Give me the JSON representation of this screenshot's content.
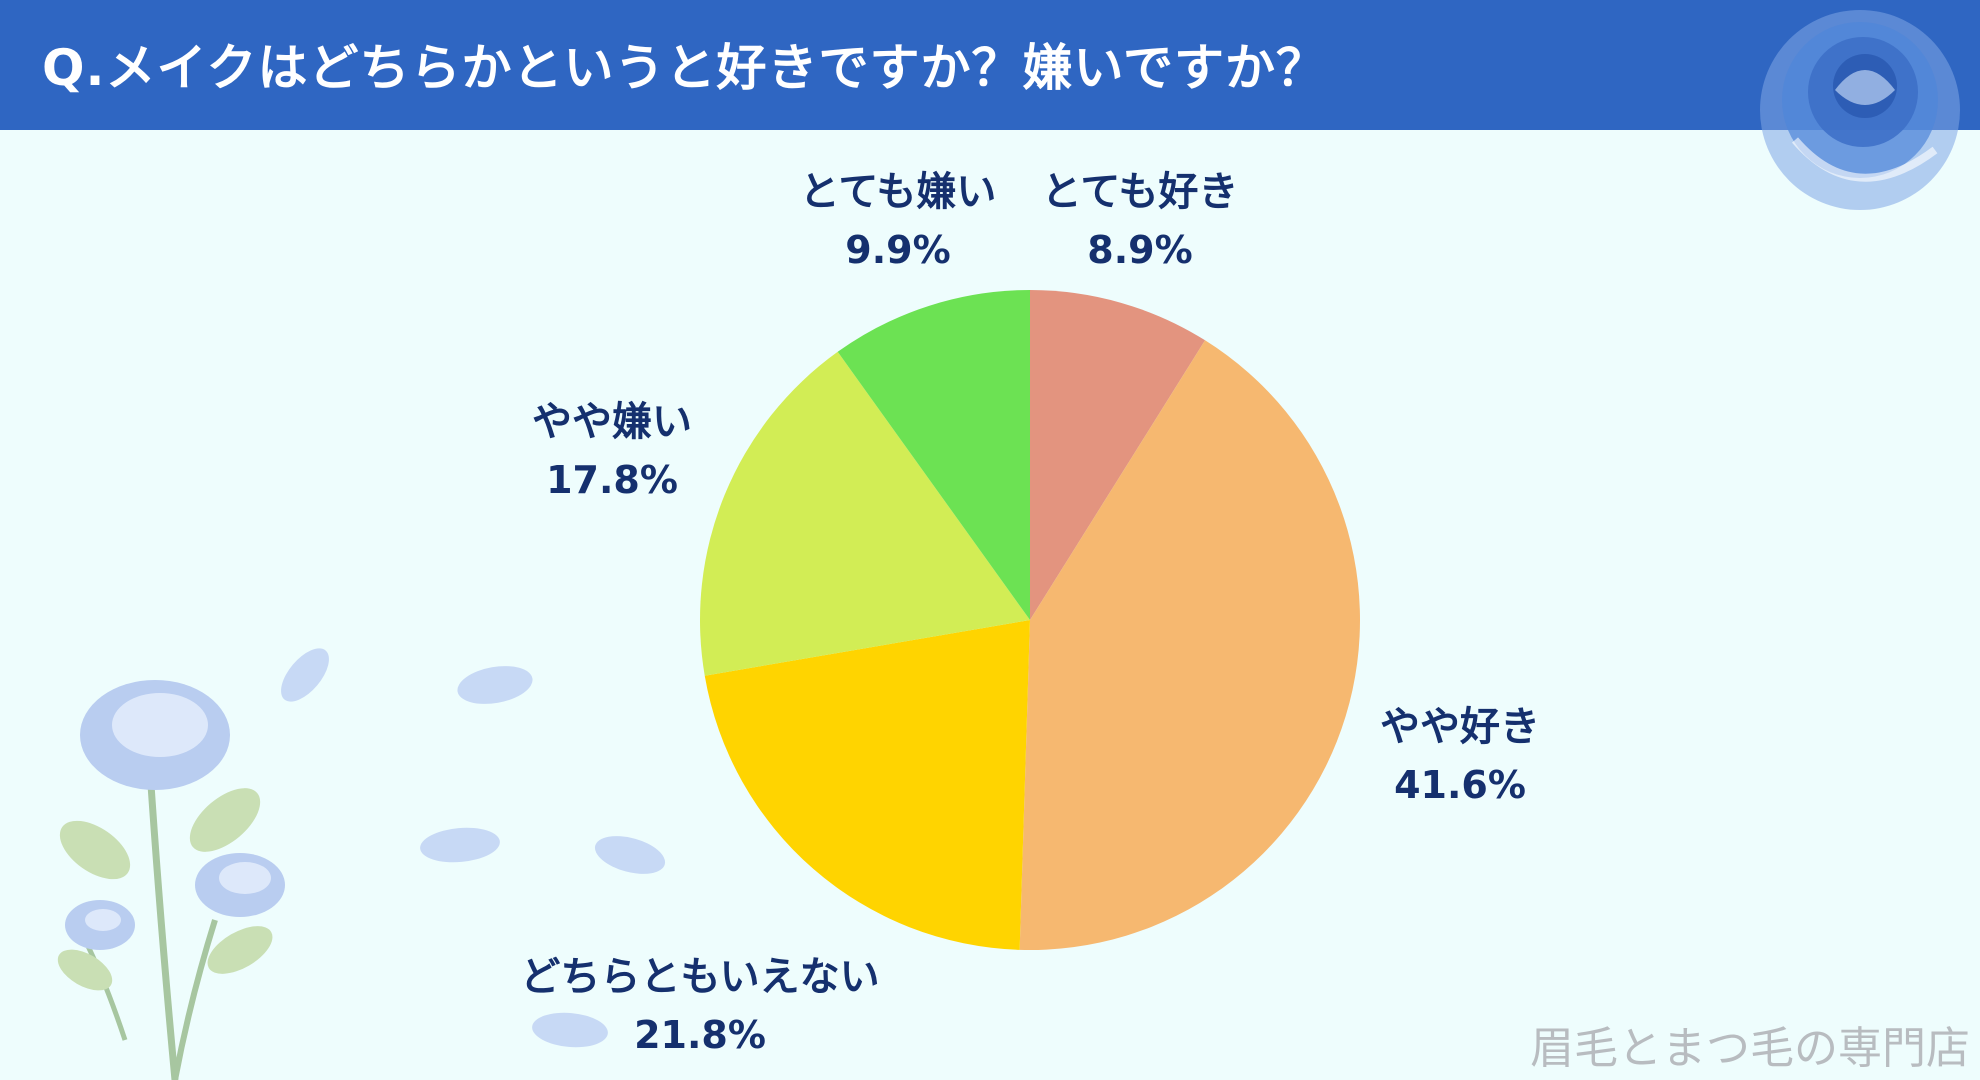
{
  "header": {
    "title": "Q.メイクはどちらかというと好きですか？嫌いですか？"
  },
  "chart_data": {
    "type": "pie",
    "title": "Q.メイクはどちらかというと好きですか？嫌いですか？",
    "slices": [
      {
        "label": "とても好き",
        "value": 8.9,
        "value_label": "8.9%",
        "color": "#e3947f"
      },
      {
        "label": "やや好き",
        "value": 41.6,
        "value_label": "41.6%",
        "color": "#f6b870"
      },
      {
        "label": "どちらともいえない",
        "value": 21.8,
        "value_label": "21.8%",
        "color": "#ffd400"
      },
      {
        "label": "やや嫌い",
        "value": 17.8,
        "value_label": "17.8%",
        "color": "#d2ed55"
      },
      {
        "label": "とても嫌い",
        "value": 9.9,
        "value_label": "9.9%",
        "color": "#6ce253"
      }
    ],
    "start_angle": "12 o'clock",
    "direction": "clockwise"
  },
  "footer": {
    "brand": "眉毛とまつ毛の専門店"
  },
  "colors": {
    "header_bg": "#2f66c2",
    "background": "#eefdfd",
    "label_text": "#15306e",
    "brand_text": "#b8bcc0"
  }
}
